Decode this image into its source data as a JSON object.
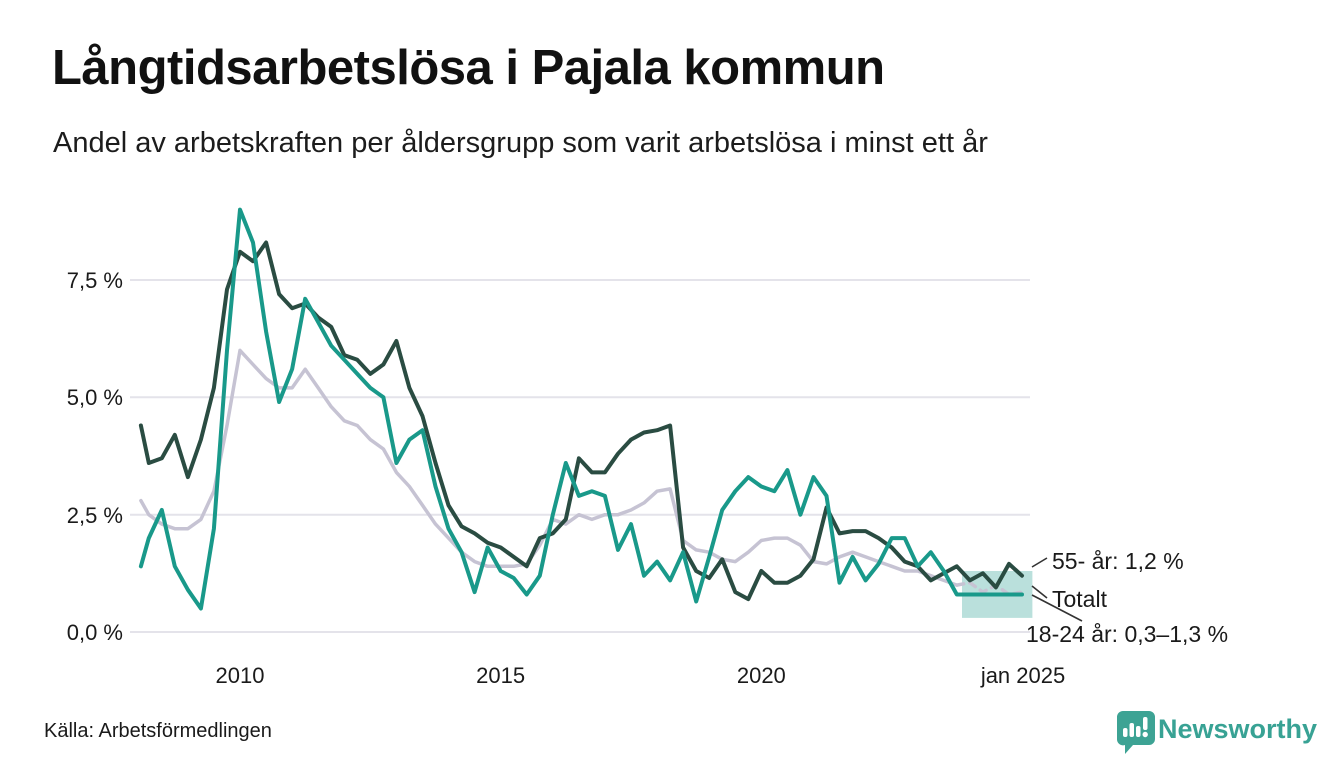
{
  "title": "Långtidsarbetslösa i Pajala kommun",
  "subtitle": "Andel av arbetskraften per åldersgrupp som varit arbetslösa i minst ett år",
  "source": "Källa: Arbetsförmedlingen",
  "branding": {
    "name": "Newsworthy",
    "color": "#38a294"
  },
  "colors": {
    "background": "#ffffff",
    "grid": "#e4e3ea",
    "text": "#1a1a1a",
    "leader_line": "#333333",
    "series_55": "#2a4c42",
    "series_total": "#c6c3d3",
    "series_18_24": "#19998a",
    "band_fill": "#19998a"
  },
  "chart_data": {
    "type": "line",
    "title": "Långtidsarbetslösa i Pajala kommun",
    "subtitle": "Andel av arbetskraften per åldersgrupp som varit arbetslösa i minst ett år",
    "ylabel": "",
    "xlabel": "",
    "grid": "horizontal",
    "legend_position": "end-of-line-labels",
    "ylim": [
      0,
      9.4
    ],
    "xlim": [
      2008,
      2025.2
    ],
    "y_ticks": [
      {
        "value": 0.0,
        "label": "0,0 %"
      },
      {
        "value": 2.5,
        "label": "2,5 %"
      },
      {
        "value": 5.0,
        "label": "5,0 %"
      },
      {
        "value": 7.5,
        "label": "7,5 %"
      }
    ],
    "x_ticks": [
      {
        "value": 2010,
        "label": "2010"
      },
      {
        "value": 2015,
        "label": "2015"
      },
      {
        "value": 2020,
        "label": "2020"
      },
      {
        "value": 2025.02,
        "label": "jan 2025"
      }
    ],
    "x": [
      2008.1,
      2008.25,
      2008.5,
      2008.75,
      2009,
      2009.25,
      2009.5,
      2009.75,
      2010,
      2010.25,
      2010.5,
      2010.75,
      2011,
      2011.25,
      2011.5,
      2011.75,
      2012,
      2012.25,
      2012.5,
      2012.75,
      2013,
      2013.25,
      2013.5,
      2013.75,
      2014,
      2014.25,
      2014.5,
      2014.75,
      2015,
      2015.25,
      2015.5,
      2015.75,
      2016,
      2016.25,
      2016.5,
      2016.75,
      2017,
      2017.25,
      2017.5,
      2017.75,
      2018,
      2018.25,
      2018.5,
      2018.75,
      2019,
      2019.25,
      2019.5,
      2019.75,
      2020,
      2020.25,
      2020.5,
      2020.75,
      2021,
      2021.25,
      2021.5,
      2021.75,
      2022,
      2022.25,
      2022.5,
      2022.75,
      2023,
      2023.25,
      2023.5,
      2023.75,
      2024,
      2024.25,
      2024.5,
      2024.75,
      2025
    ],
    "series": [
      {
        "id": "55-ar",
        "name": "55- år",
        "color": "#2a4c42",
        "end_label": "55- år: 1,2 %",
        "end_value": "1,2 %",
        "values": [
          4.4,
          3.6,
          3.7,
          4.2,
          3.3,
          4.1,
          5.2,
          7.3,
          8.1,
          7.9,
          8.3,
          7.2,
          6.9,
          7.0,
          6.7,
          6.5,
          5.9,
          5.8,
          5.5,
          5.7,
          6.2,
          5.2,
          4.6,
          3.6,
          2.7,
          2.25,
          2.1,
          1.9,
          1.8,
          1.6,
          1.4,
          2.0,
          2.1,
          2.4,
          3.7,
          3.4,
          3.4,
          3.8,
          4.1,
          4.25,
          4.3,
          4.4,
          1.8,
          1.3,
          1.15,
          1.55,
          0.85,
          0.7,
          1.3,
          1.05,
          1.05,
          1.2,
          1.55,
          2.65,
          2.1,
          2.15,
          2.15,
          2.0,
          1.8,
          1.5,
          1.4,
          1.1,
          1.25,
          1.4,
          1.1,
          1.25,
          0.95,
          1.45,
          1.2
        ]
      },
      {
        "id": "totalt",
        "name": "Totalt",
        "color": "#c6c3d3",
        "end_label": "Totalt",
        "dashed_from": 2023.75,
        "values": [
          2.8,
          2.5,
          2.3,
          2.2,
          2.2,
          2.4,
          3.0,
          4.4,
          6.0,
          5.7,
          5.4,
          5.2,
          5.2,
          5.6,
          5.2,
          4.8,
          4.5,
          4.4,
          4.1,
          3.9,
          3.4,
          3.1,
          2.7,
          2.3,
          2.0,
          1.7,
          1.5,
          1.4,
          1.4,
          1.4,
          1.45,
          1.85,
          2.4,
          2.3,
          2.5,
          2.4,
          2.5,
          2.5,
          2.6,
          2.75,
          3.0,
          3.05,
          1.95,
          1.75,
          1.7,
          1.55,
          1.5,
          1.7,
          1.95,
          2.0,
          2.0,
          1.85,
          1.5,
          1.45,
          1.6,
          1.7,
          1.6,
          1.5,
          1.4,
          1.3,
          1.3,
          1.2,
          1.1,
          1.0,
          1.05,
          0.85,
          1.0,
          0.8,
          0.85
        ]
      },
      {
        "id": "18-24-ar",
        "name": "18-24 år",
        "color": "#19998a",
        "end_label": "18-24 år: 0,3–1,3 %",
        "end_value": "0,3–1,3 %",
        "values": [
          1.4,
          2.0,
          2.6,
          1.4,
          0.9,
          0.5,
          2.2,
          6.0,
          9.0,
          8.3,
          6.4,
          4.9,
          5.6,
          7.1,
          6.6,
          6.1,
          5.8,
          5.5,
          5.2,
          5.0,
          3.6,
          4.1,
          4.3,
          3.1,
          2.2,
          1.7,
          0.85,
          1.8,
          1.3,
          1.15,
          0.8,
          1.2,
          2.5,
          3.6,
          2.9,
          3.0,
          2.9,
          1.75,
          2.3,
          1.2,
          1.5,
          1.1,
          1.7,
          0.65,
          1.6,
          2.6,
          3.0,
          3.3,
          3.1,
          3.0,
          3.45,
          2.5,
          3.3,
          2.9,
          1.05,
          1.6,
          1.1,
          1.45,
          2.0,
          2.0,
          1.4,
          1.7,
          1.3,
          0.8,
          0.8,
          0.8,
          0.8,
          0.8,
          0.8
        ]
      }
    ],
    "uncertainty_band": {
      "series": "18-24 år",
      "x_start": 2023.85,
      "x_end": 2025.2,
      "y_low": 0.3,
      "y_high": 1.3,
      "opacity": 0.3
    }
  }
}
